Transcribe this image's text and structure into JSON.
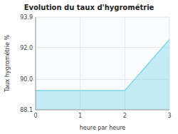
{
  "chart_data": {
    "type": "area",
    "title": "Evolution du taux d'hygrométrie",
    "x_label": "heure par heure",
    "y_label": "Taux hygrométrie %",
    "x": [
      0,
      1,
      2,
      3
    ],
    "values": [
      89.3,
      89.3,
      89.3,
      92.5
    ],
    "color": "#7fd8e8",
    "xlim": [
      0,
      3
    ],
    "ylim": [
      88.1,
      93.9
    ],
    "xticks": [
      0,
      1,
      2,
      3
    ],
    "yticks": [
      88.1,
      {
        "value": 90,
        "label": "90.0"
      },
      {
        "value": 92,
        "label": "92.0"
      },
      93.9
    ],
    "grid": true
  }
}
